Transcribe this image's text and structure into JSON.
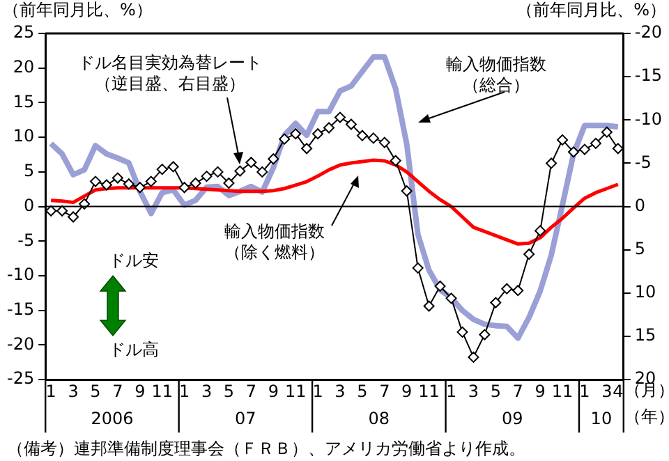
{
  "chart_data": {
    "type": "line",
    "ylabel": "（前年同月比、%）",
    "y2label": "（前年同月比、%）",
    "categories": [
      "1",
      null,
      "3",
      null,
      "5",
      null,
      "7",
      null,
      "9",
      null,
      "11",
      null,
      "1",
      null,
      "3",
      null,
      "5",
      null,
      "7",
      null,
      "9",
      null,
      "11",
      null,
      "1",
      null,
      "3",
      null,
      "5",
      null,
      "7",
      null,
      "9",
      null,
      "11",
      null,
      "1",
      null,
      "3",
      null,
      "5",
      null,
      "7",
      null,
      "9",
      null,
      "11",
      null,
      "1",
      null,
      "3",
      "4"
    ],
    "series": [
      {
        "name": "輸入物価指数（総合）",
        "color": "#9a9fd6",
        "marker": "none",
        "values": [
          9.1,
          7.6,
          4.6,
          5.3,
          8.8,
          7.6,
          7.0,
          6.3,
          2.2,
          -1.0,
          2.0,
          2.4,
          0.2,
          0.9,
          2.8,
          2.9,
          1.6,
          2.2,
          2.9,
          2.1,
          5.6,
          10.3,
          12.0,
          10.3,
          13.7,
          13.7,
          16.7,
          17.4,
          19.5,
          21.6,
          21.6,
          17.0,
          9.0,
          -4.0,
          -9.2,
          -12.0,
          -13.2,
          -15.0,
          -16.3,
          -17.0,
          -17.2,
          -17.3,
          -19.0,
          -16.0,
          -12.2,
          -7.0,
          0.2,
          7.6,
          11.7,
          11.7,
          11.7,
          11.5
        ]
      },
      {
        "name": "輸入物価指数（除く燃料）",
        "color": "#ff0000",
        "marker": "none",
        "values": [
          0.9,
          0.8,
          0.6,
          1.5,
          2.4,
          2.6,
          2.7,
          2.7,
          2.7,
          2.7,
          2.7,
          2.7,
          2.7,
          2.6,
          2.5,
          2.4,
          2.3,
          2.2,
          2.2,
          2.2,
          2.3,
          2.6,
          3.1,
          3.6,
          4.4,
          5.3,
          6.0,
          6.3,
          6.5,
          6.7,
          6.6,
          6.0,
          5.0,
          3.6,
          2.2,
          1.0,
          0.0,
          -1.5,
          -3.0,
          -3.6,
          -4.2,
          -4.8,
          -5.4,
          -5.3,
          -4.5,
          -3.0,
          -1.7,
          -0.2,
          1.2,
          2.0,
          2.6,
          3.2
        ]
      },
      {
        "name": "ドル名目実効為替レート（逆目盛、右目盛）",
        "color": "#000000",
        "marker": "diamond",
        "axis": "y2",
        "values": [
          0.5,
          0.5,
          1.2,
          -0.3,
          -2.9,
          -2.5,
          -3.3,
          -2.6,
          -2.2,
          -2.9,
          -4.3,
          -4.6,
          -2.2,
          -2.7,
          -3.5,
          -4.0,
          -2.7,
          -4.1,
          -5.1,
          -4.0,
          -5.5,
          -7.8,
          -8.4,
          -6.7,
          -8.4,
          -9.1,
          -10.3,
          -9.5,
          -8.2,
          -7.9,
          -7.4,
          -5.3,
          -1.8,
          7.1,
          11.5,
          9.2,
          10.6,
          14.5,
          17.4,
          14.8,
          11.1,
          9.5,
          9.7,
          5.5,
          2.8,
          -5.0,
          -7.7,
          -6.3,
          -6.6,
          -7.3,
          -8.6,
          -6.7
        ]
      }
    ],
    "ylim": [
      -25,
      25
    ],
    "yticks": [
      -25,
      -20,
      -15,
      -10,
      -5,
      0,
      5,
      10,
      15,
      20,
      25
    ],
    "y2lim": [
      20,
      -20
    ],
    "y2ticks": [
      20,
      15,
      10,
      5,
      0,
      -5,
      -10,
      -15,
      -20
    ],
    "grid": false,
    "legend": false,
    "ref_lines": [
      {
        "axis": "y",
        "value": 0,
        "color": "#000000"
      }
    ],
    "annotations": [
      "ドル安",
      "ドル高",
      "2006",
      "07",
      "08",
      "09",
      "10",
      "（月）",
      "（年）",
      "（備考）連邦準備制度理事会（ＦＲＢ）、アメリカ労働省より作成。"
    ]
  }
}
